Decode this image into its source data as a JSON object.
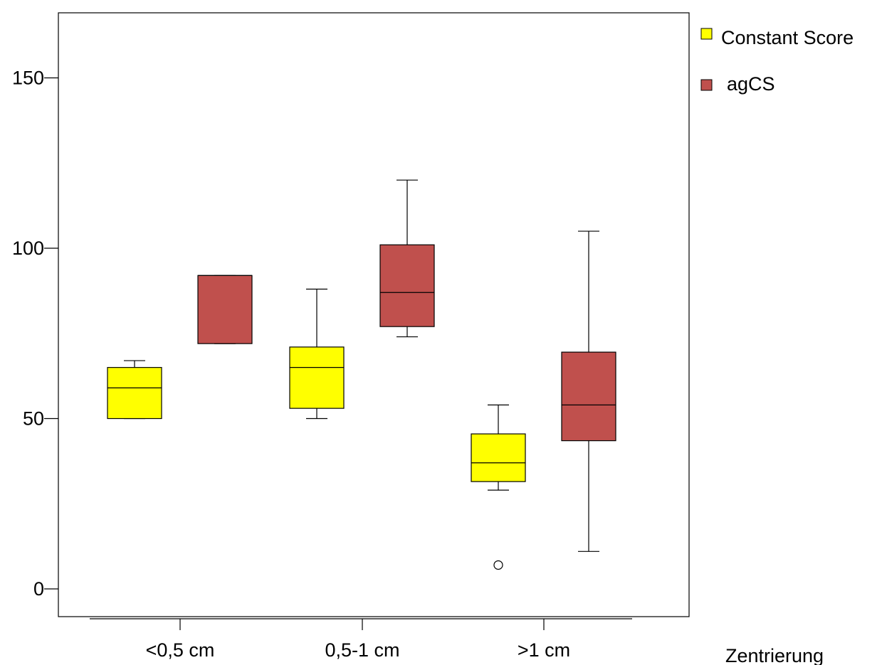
{
  "chart_data": {
    "type": "boxplot",
    "title": "",
    "xlabel": "Zentrierung",
    "ylabel": "",
    "ylim": [
      -8,
      170
    ],
    "y_ticks": [
      0,
      50,
      100,
      150
    ],
    "y_tick_labels": [
      "0",
      "50",
      "100",
      "150"
    ],
    "categories": [
      "<0,5 cm",
      "0,5-1 cm",
      ">1 cm"
    ],
    "grid": false,
    "legend_position": "right",
    "series": [
      {
        "name": "Constant Score",
        "color": "#ffff00",
        "boxes": [
          {
            "min": 50,
            "q1": 50,
            "median": 59,
            "q3": 65,
            "max": 67,
            "outliers": []
          },
          {
            "min": 50,
            "q1": 53,
            "median": 65,
            "q3": 71,
            "max": 88,
            "outliers": []
          },
          {
            "min": 29,
            "q1": 31.5,
            "median": 37,
            "q3": 45.5,
            "max": 54,
            "outliers": [
              7
            ]
          }
        ]
      },
      {
        "name": "agCS",
        "color": "#c0504d",
        "boxes": [
          {
            "min": 72,
            "q1": 72,
            "median": 92,
            "q3": 92,
            "max": 92,
            "outliers": []
          },
          {
            "min": 74,
            "q1": 77,
            "median": 87,
            "q3": 101,
            "max": 120,
            "outliers": []
          },
          {
            "min": 11,
            "q1": 43.5,
            "median": 54,
            "q3": 69.5,
            "max": 105,
            "outliers": []
          }
        ]
      }
    ]
  }
}
